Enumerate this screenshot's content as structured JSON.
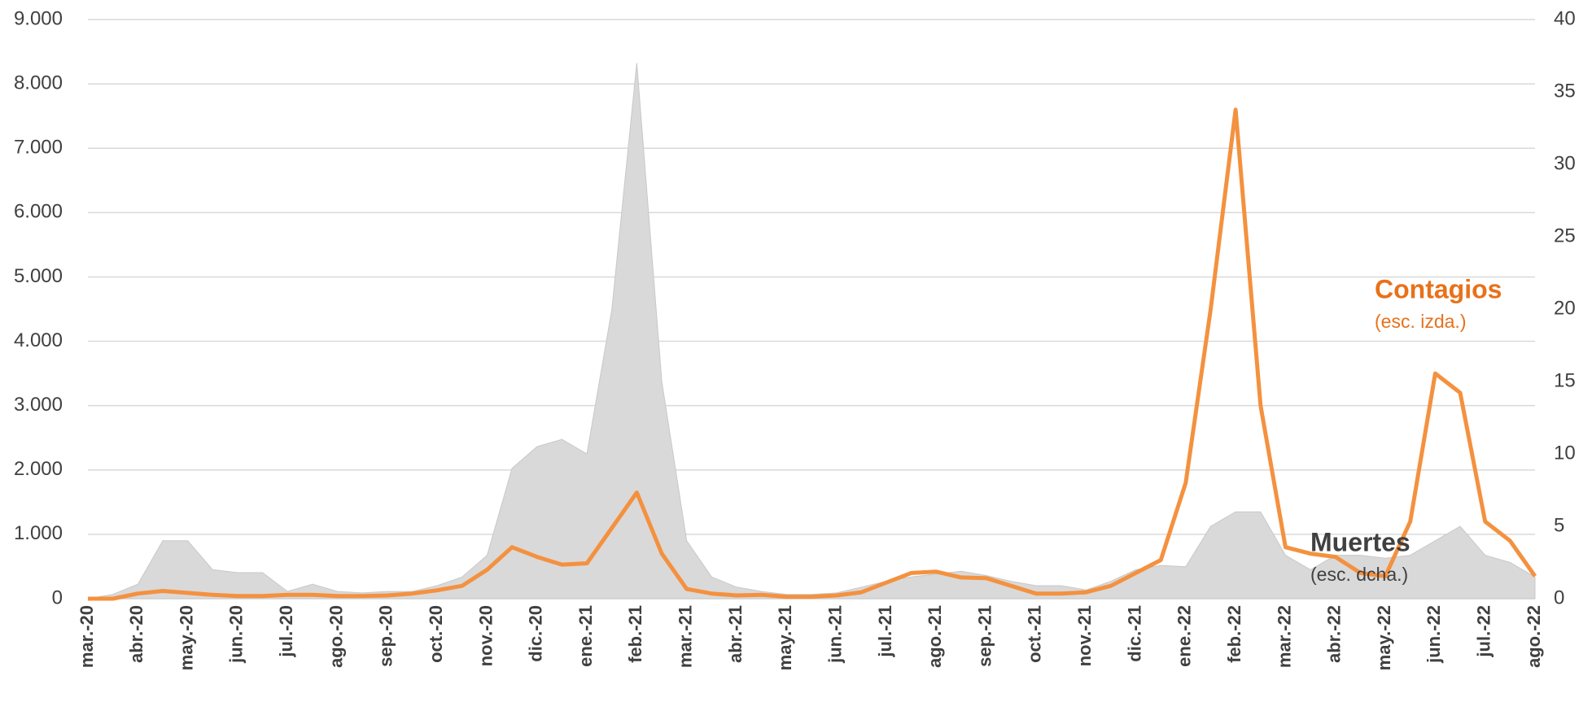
{
  "chart_data": {
    "type": "line",
    "categories": [
      "mar.-20",
      null,
      "abr.-20",
      null,
      "may.-20",
      null,
      "jun.-20",
      null,
      "jul.-20",
      null,
      "ago.-20",
      null,
      "sep.-20",
      null,
      "oct.-20",
      null,
      "nov.-20",
      null,
      "dic.-20",
      null,
      "ene.-21",
      null,
      "feb.-21",
      null,
      "mar.-21",
      null,
      "abr.-21",
      null,
      "may.-21",
      null,
      "jun.-21",
      null,
      "jul.-21",
      null,
      "ago.-21",
      null,
      "sep.-21",
      null,
      "oct.-21",
      null,
      "nov.-21",
      null,
      "dic.-21",
      null,
      "ene.-22",
      null,
      "feb.-22",
      null,
      "mar.-22",
      null,
      "abr.-22",
      null,
      "may.-22",
      null,
      "jun.-22",
      null,
      "jul.-22",
      null,
      "ago.-22"
    ],
    "series": [
      {
        "name": "Muertes",
        "note": "(esc. dcha.)",
        "type": "area",
        "axis": "y2",
        "color": "#d9d9d9",
        "values": [
          0,
          0.3,
          1,
          4,
          4,
          2,
          1.8,
          1.8,
          0.5,
          1,
          0.5,
          0.4,
          0.5,
          0.5,
          0.9,
          1.5,
          3,
          9,
          10.5,
          11,
          10,
          20,
          37,
          15,
          4,
          1.5,
          0.8,
          0.5,
          0.3,
          0.3,
          0.4,
          0.8,
          1.2,
          1.5,
          1.7,
          1.9,
          1.6,
          1.2,
          0.9,
          0.9,
          0.6,
          1.2,
          2,
          2.3,
          2.2,
          5,
          6,
          6,
          3,
          2,
          3,
          3,
          2.8,
          3,
          4,
          5,
          3,
          2.5,
          1.5
        ]
      },
      {
        "name": "Contagios",
        "note": "(esc. izda.)",
        "type": "line",
        "color": "#f4913f",
        "values": [
          0,
          0,
          80,
          120,
          90,
          60,
          40,
          40,
          60,
          60,
          40,
          40,
          50,
          80,
          130,
          200,
          450,
          800,
          650,
          530,
          550,
          1100,
          1650,
          700,
          150,
          80,
          50,
          60,
          30,
          30,
          50,
          100,
          250,
          400,
          420,
          330,
          320,
          200,
          80,
          80,
          100,
          200,
          400,
          600,
          1800,
          4500,
          7600,
          3000,
          800,
          700,
          650,
          400,
          350,
          1200,
          3500,
          3200,
          1200,
          900,
          350
        ]
      }
    ],
    "ylim": [
      0,
      9000
    ],
    "yticks": [
      0,
      {
        "value": 1000,
        "label": "1.000"
      },
      {
        "value": 2000,
        "label": "2.000"
      },
      {
        "value": 3000,
        "label": "3.000"
      },
      {
        "value": 4000,
        "label": "4.000"
      },
      {
        "value": 5000,
        "label": "5.000"
      },
      {
        "value": 6000,
        "label": "6.000"
      },
      {
        "value": 7000,
        "label": "7.000"
      },
      {
        "value": 8000,
        "label": "8.000"
      },
      {
        "value": 9000,
        "label": "9.000"
      }
    ],
    "y2lim": [
      0,
      40
    ],
    "y2ticks": [
      0,
      5,
      10,
      15,
      20,
      25,
      30,
      35,
      40
    ],
    "grid": true
  }
}
